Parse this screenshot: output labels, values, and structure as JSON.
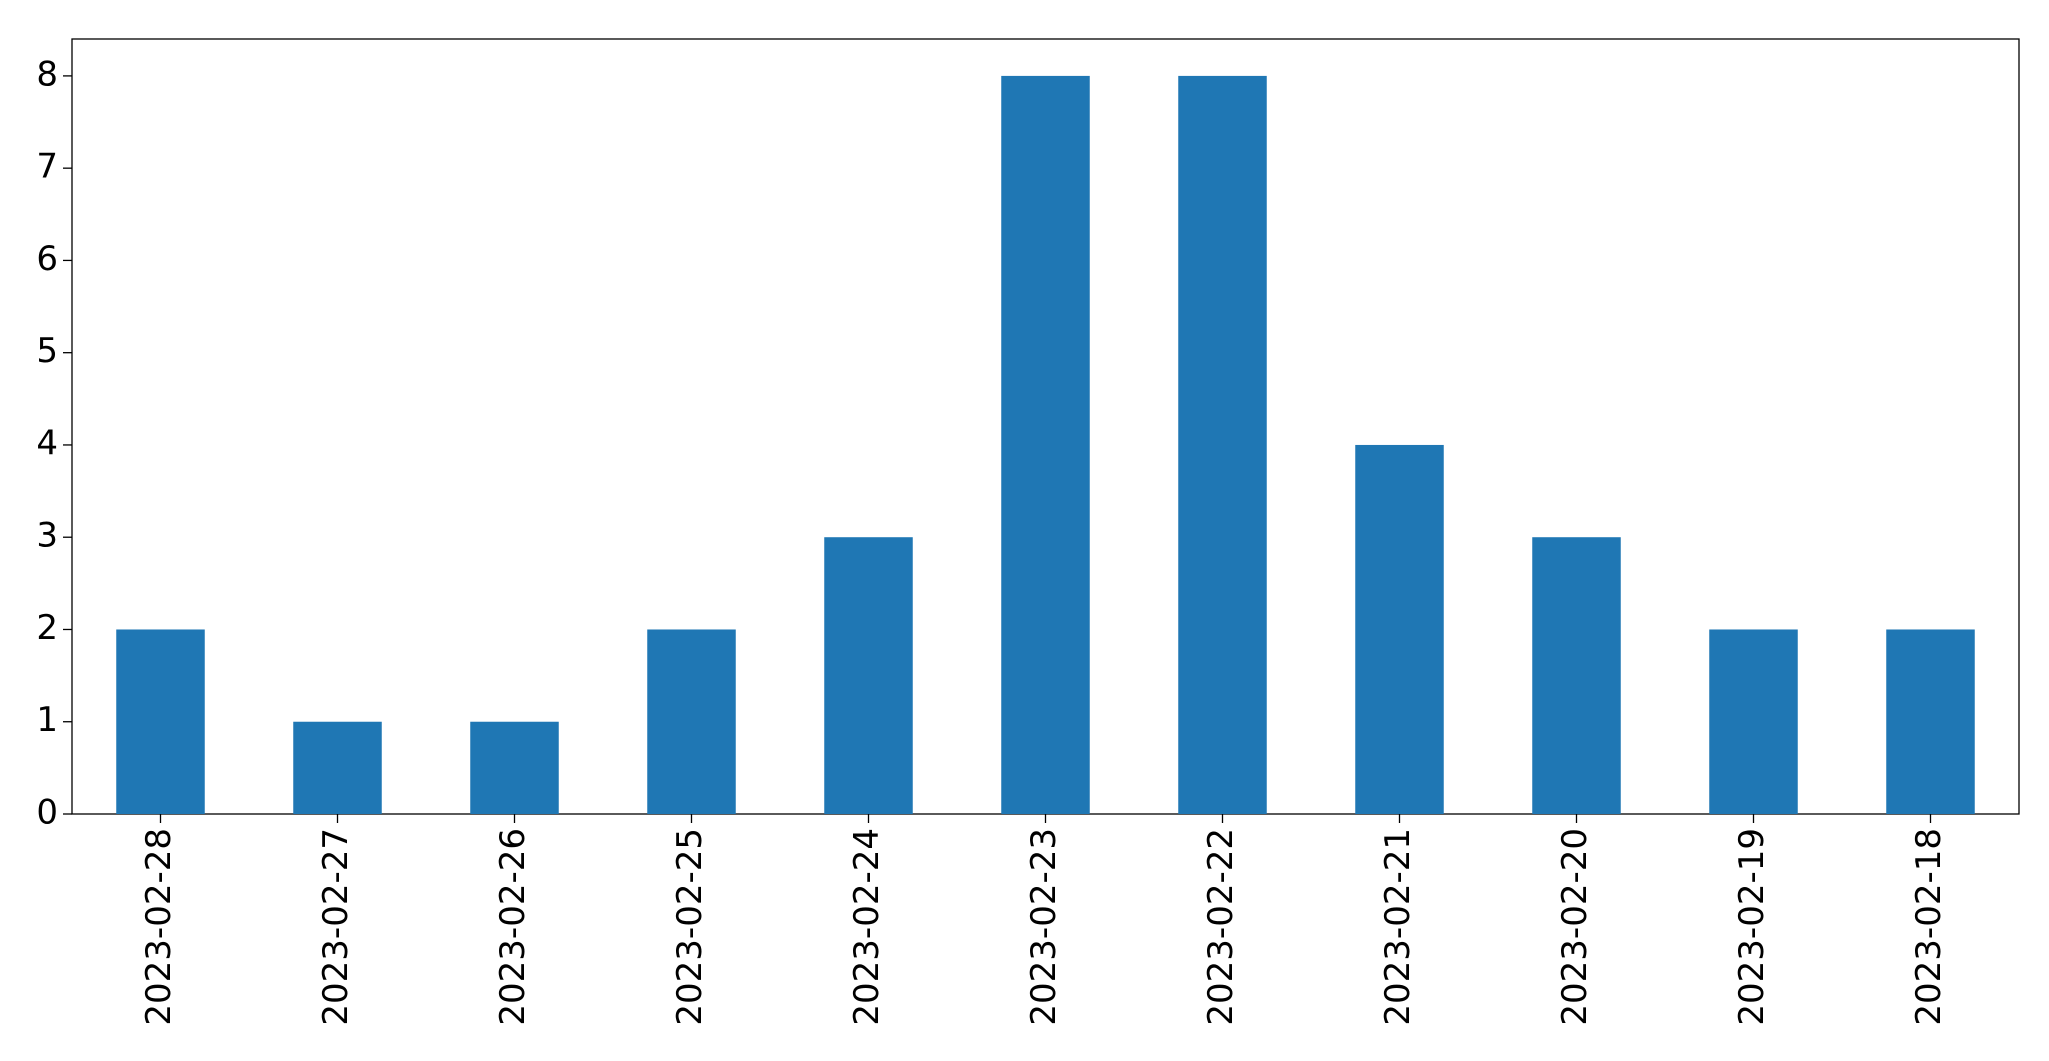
{
  "chart_data": {
    "type": "bar",
    "categories": [
      "2023-02-28",
      "2023-02-27",
      "2023-02-26",
      "2023-02-25",
      "2023-02-24",
      "2023-02-23",
      "2023-02-22",
      "2023-02-21",
      "2023-02-20",
      "2023-02-19",
      "2023-02-18"
    ],
    "values": [
      2,
      1,
      1,
      2,
      3,
      8,
      8,
      4,
      3,
      2,
      2
    ],
    "color": "#1f77b4",
    "ylim": [
      0,
      8.4
    ],
    "yticks": [
      0,
      1,
      2,
      3,
      4,
      5,
      6,
      7,
      8
    ],
    "grid": false
  }
}
